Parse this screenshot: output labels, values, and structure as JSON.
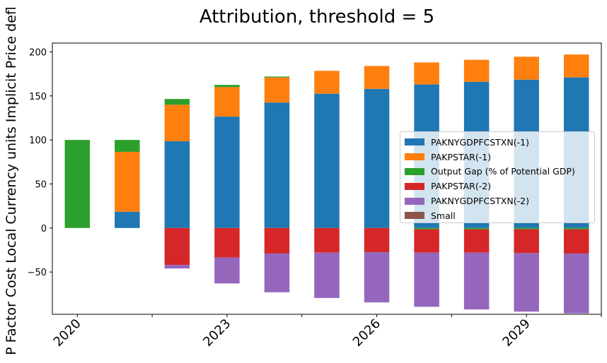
{
  "chart_data": {
    "type": "bar",
    "stacked": true,
    "title": "Attribution, threshold = 5",
    "ylabel": "P Factor Cost Local Currency units Implicit Price defl",
    "xlabel": "",
    "categories": [
      "2020",
      "2021",
      "2022",
      "2023",
      "2024",
      "2025",
      "2026",
      "2027",
      "2028",
      "2029",
      "2030"
    ],
    "x_tick_labels": [
      "2020",
      "2023",
      "2026",
      "2029"
    ],
    "y_ticks": [
      "−50",
      "0",
      "50",
      "100",
      "150",
      "200"
    ],
    "ylim": [
      -98,
      210
    ],
    "grid": false,
    "legend_position": "center-right",
    "series": [
      {
        "name": "PAKNYGDPFCSTXN(-1)",
        "color": "#1f77b4",
        "values": [
          0,
          18.5,
          98.5,
          126.5,
          142.5,
          152.5,
          158,
          163,
          166,
          168.5,
          171
        ]
      },
      {
        "name": "PAKPSTAR(-1)",
        "color": "#ff7f0e",
        "values": [
          0,
          68,
          41.5,
          33.5,
          28.5,
          26,
          26,
          25,
          25,
          26,
          26
        ]
      },
      {
        "name": "Output Gap (% of Potential GDP)",
        "color": "#2ca02c",
        "values": [
          100,
          13.5,
          6.5,
          2.5,
          1,
          0,
          0,
          -1.5,
          -1.5,
          -1.5,
          -1.5
        ]
      },
      {
        "name": "PAKPSTAR(-2)",
        "color": "#d62728",
        "values": [
          0,
          0,
          -42,
          -33.5,
          -29,
          -28,
          -27.5,
          -26.5,
          -26.5,
          -27,
          -27.5
        ]
      },
      {
        "name": "PAKNYGDPFCSTXN(-2)",
        "color": "#9467bd",
        "values": [
          0,
          0,
          -4,
          -29.5,
          -44,
          -51.5,
          -57,
          -61.5,
          -64.5,
          -66.5,
          -68
        ]
      },
      {
        "name": "Small",
        "color": "#8c564b",
        "values": [
          0,
          0,
          0,
          0,
          0,
          0,
          0,
          0,
          0,
          0,
          0
        ]
      }
    ]
  }
}
